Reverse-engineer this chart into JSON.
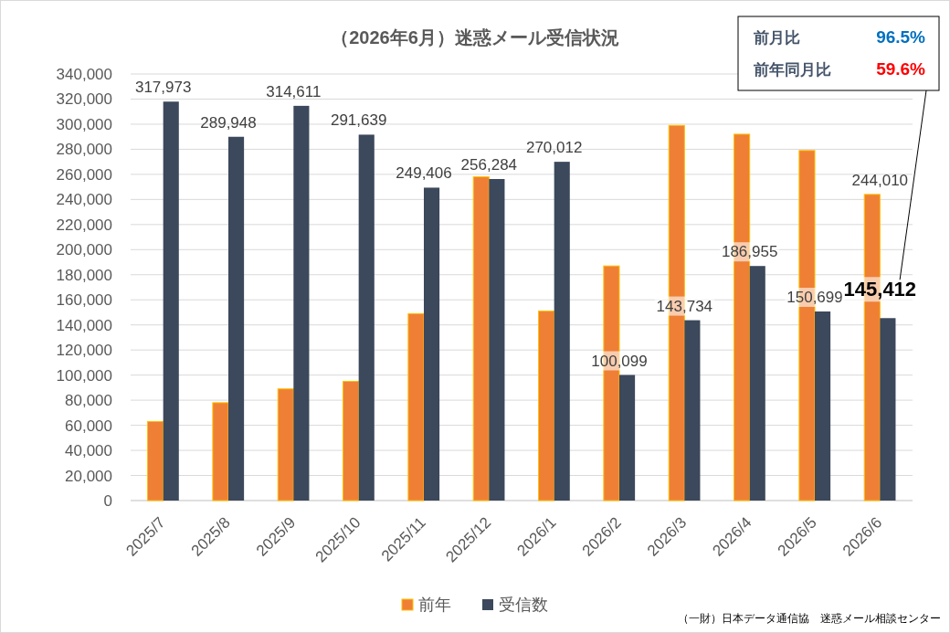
{
  "chart_data": {
    "type": "bar",
    "title": "（2026年6月）迷惑メール受信状況",
    "categories": [
      "2025/7",
      "2025/8",
      "2025/9",
      "2025/10",
      "2025/11",
      "2025/12",
      "2026/1",
      "2026/2",
      "2026/3",
      "2026/4",
      "2026/5",
      "2026/6"
    ],
    "series": [
      {
        "name": "前年",
        "color": "#ef7f35",
        "values": [
          63000,
          78000,
          89000,
          95000,
          149000,
          258000,
          151000,
          187000,
          299000,
          292000,
          279000,
          244010
        ],
        "value_labels": [
          null,
          null,
          null,
          null,
          null,
          null,
          null,
          null,
          null,
          null,
          null,
          "244,010"
        ]
      },
      {
        "name": "受信数",
        "color": "#3c485b",
        "values": [
          317973,
          289948,
          314611,
          291639,
          249406,
          256284,
          270012,
          100099,
          143734,
          186955,
          150699,
          145412
        ],
        "value_labels": [
          "317,973",
          "289,948",
          "314,611",
          "291,639",
          "249,406",
          "256,284",
          "270,012",
          "100,099",
          "143,734",
          "186,955",
          "150,699",
          "145,412"
        ]
      }
    ],
    "ylim": [
      0,
      340000
    ],
    "yticks": [
      0,
      {
        "value": 20000,
        "label": "20,000"
      },
      {
        "value": 40000,
        "label": "40,000"
      },
      {
        "value": 60000,
        "label": "60,000"
      },
      {
        "value": 80000,
        "label": "80,000"
      },
      {
        "value": 100000,
        "label": "100,000"
      },
      {
        "value": 120000,
        "label": "120,000"
      },
      {
        "value": 140000,
        "label": "140,000"
      },
      {
        "value": 160000,
        "label": "160,000"
      },
      {
        "value": 180000,
        "label": "180,000"
      },
      {
        "value": 200000,
        "label": "200,000"
      },
      {
        "value": 220000,
        "label": "220,000"
      },
      {
        "value": 240000,
        "label": "240,000"
      },
      {
        "value": 260000,
        "label": "260,000"
      },
      {
        "value": 280000,
        "label": "280,000"
      },
      {
        "value": 300000,
        "label": "300,000"
      },
      {
        "value": 320000,
        "label": "320,000"
      },
      {
        "value": 340000,
        "label": "340,000"
      }
    ],
    "grid": "y",
    "legend": "bottom",
    "annotations": [
      "前月比",
      "96.5%",
      "前年同月比",
      "59.6%",
      "（一財）日本データ通信協　迷惑メール相談センター"
    ]
  }
}
